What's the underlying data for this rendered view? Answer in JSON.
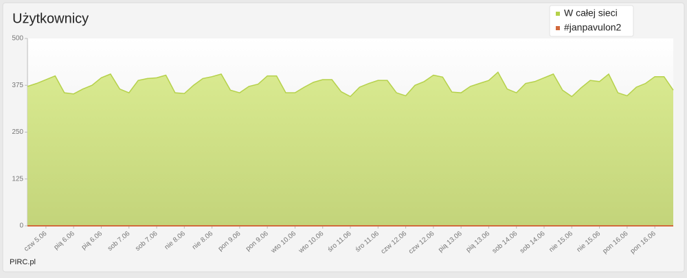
{
  "title": "Użytkownicy",
  "footer": "PIRC.pl",
  "chart_data": {
    "type": "area",
    "categories": [
      null,
      null,
      "czw 5.06",
      null,
      null,
      "pią 6.06",
      null,
      null,
      "pią 6.06",
      null,
      null,
      "sob 7.06",
      null,
      null,
      "sob 7.06",
      null,
      null,
      "nie 8.06",
      null,
      null,
      "nie 8.06",
      null,
      null,
      "pon 9.06",
      null,
      null,
      "pon 9.06",
      null,
      null,
      "wto 10.06",
      null,
      null,
      "wto 10.06",
      null,
      null,
      "śro 11.06",
      null,
      null,
      "śro 11.06",
      null,
      null,
      "czw 12.06",
      null,
      null,
      "czw 12.06",
      null,
      null,
      "pią 13.06",
      null,
      null,
      "pią 13.06",
      null,
      null,
      "sob 14.06",
      null,
      null,
      "sob 14.06",
      null,
      null,
      "nie 15.06",
      null,
      null,
      "nie 15.06",
      null,
      null,
      "pon 16.06",
      null,
      null,
      "pon 16.06",
      null,
      null
    ],
    "series": [
      {
        "name": "W całej sieci",
        "color": "#b5d14a",
        "values": [
          372,
          380,
          390,
          400,
          355,
          352,
          365,
          375,
          395,
          405,
          365,
          355,
          388,
          393,
          395,
          402,
          355,
          353,
          375,
          393,
          398,
          405,
          362,
          355,
          372,
          378,
          400,
          400,
          355,
          355,
          370,
          383,
          390,
          390,
          358,
          345,
          370,
          380,
          388,
          388,
          355,
          347,
          375,
          385,
          402,
          397,
          357,
          355,
          372,
          380,
          388,
          410,
          365,
          355,
          380,
          385,
          395,
          405,
          362,
          345,
          368,
          388,
          385,
          405,
          355,
          347,
          370,
          380,
          398,
          398,
          362
        ]
      },
      {
        "name": "#janpavulon2",
        "color": "#d2693c",
        "values": [
          0,
          0,
          0,
          0,
          0,
          0,
          0,
          0,
          0,
          0,
          0,
          0,
          0,
          0,
          0,
          0,
          0,
          0,
          0,
          0,
          0,
          0,
          0,
          0,
          0,
          0,
          0,
          0,
          0,
          0,
          0,
          0,
          0,
          0,
          0,
          0,
          0,
          0,
          0,
          0,
          0,
          0,
          0,
          0,
          0,
          0,
          0,
          0,
          0,
          0,
          0,
          0,
          0,
          0,
          0,
          0,
          0,
          0,
          0,
          0,
          0,
          0,
          0,
          0,
          0,
          0,
          0,
          0,
          0,
          0,
          0
        ]
      }
    ],
    "ylim": [
      0,
      500
    ],
    "yticks": [
      0,
      125,
      250,
      375,
      500
    ],
    "legend": "top-right"
  }
}
